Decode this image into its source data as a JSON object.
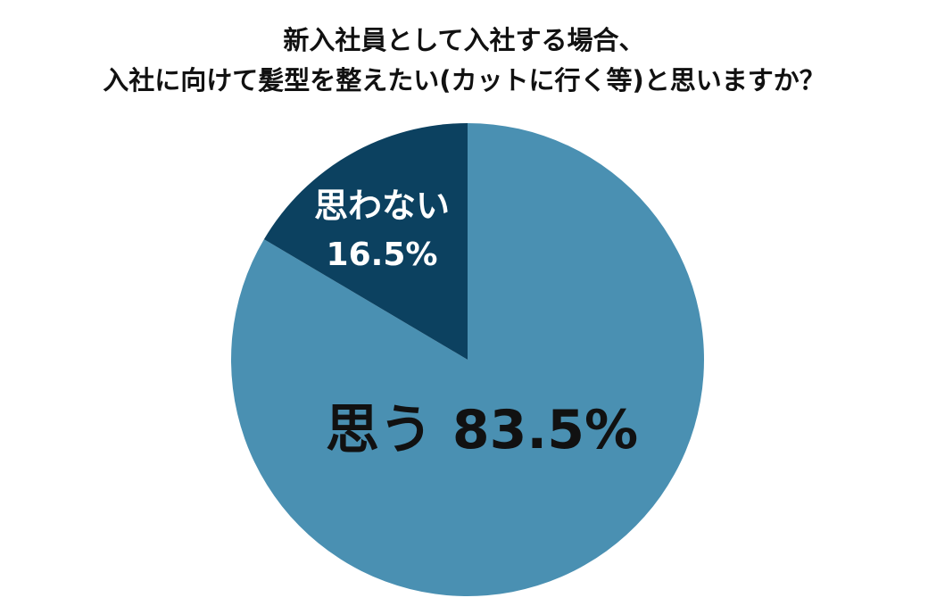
{
  "chart_data": {
    "type": "pie",
    "title": [
      "新入社員として入社する場合、",
      "入社に向けて髪型を整えたい(カットに行く等)と思いますか？"
    ],
    "categories": [
      "思う",
      "思わない"
    ],
    "values": [
      83.5,
      16.5
    ],
    "value_labels": [
      "83.5%",
      "16.5%"
    ],
    "colors": [
      "#4a90b2",
      "#0c4160"
    ],
    "label_colors": [
      "#111111",
      "#ffffff"
    ]
  }
}
